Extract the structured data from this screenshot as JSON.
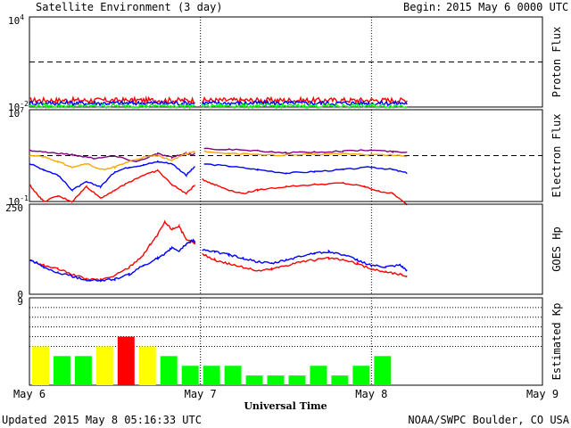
{
  "header": {
    "title": "Satellite Environment (3 day)",
    "begin_label": "Begin:",
    "begin_value": "2015 May 6 0000 UTC"
  },
  "footer": {
    "updated": "Updated 2015 May  8 05:16:33 UTC",
    "credit": "NOAA/SWPC Boulder, CO USA"
  },
  "colors": {
    "red": "#ff0000",
    "blue": "#0000ff",
    "green": "#00ff00",
    "orange": "#ffa500",
    "purple": "#800080",
    "kp_yellow": "#ffff00",
    "kp_red": "#ff0000",
    "kp_green": "#00ff00",
    "hp_label": "#ff0000"
  },
  "chart_data": [
    {
      "id": "proton",
      "type": "line",
      "ylabel": "Proton Flux",
      "yscale": "log",
      "ylim": [
        0.01,
        10000
      ],
      "tick_labels": [
        {
          "base": "10",
          "exp": "4",
          "value": 10000
        },
        {
          "base": "10",
          "exp": "-2",
          "value": 0.01
        }
      ],
      "threshold": 10,
      "series": [
        {
          "color": "red",
          "level": 0.028,
          "noise": 0.35
        },
        {
          "color": "blue",
          "level": 0.018,
          "noise": 0.3
        },
        {
          "color": "green",
          "level": 0.012,
          "noise": 0.25
        }
      ],
      "x_range": [
        0,
        53
      ],
      "gap": [
        23.3,
        24.2
      ]
    },
    {
      "id": "electron",
      "type": "line",
      "ylabel": "Electron Flux",
      "yscale": "log",
      "ylim": [
        0.1,
        10000000
      ],
      "tick_labels": [
        {
          "base": "10",
          "exp": "7",
          "value": 10000000
        },
        {
          "base": "10",
          "exp": "-1",
          "value": 0.1
        }
      ],
      "threshold": 1000,
      "series": [
        {
          "color": "purple",
          "points": [
            [
              0,
              3000
            ],
            [
              3,
              1800
            ],
            [
              6,
              1200
            ],
            [
              9,
              600
            ],
            [
              12,
              900
            ],
            [
              15,
              300
            ],
            [
              18,
              1500
            ],
            [
              20,
              700
            ],
            [
              22,
              1500
            ],
            [
              23,
              1200
            ],
            [
              24,
              4000
            ],
            [
              28,
              3500
            ],
            [
              32,
              2500
            ],
            [
              36,
              1800
            ],
            [
              40,
              2000
            ],
            [
              44,
              2500
            ],
            [
              48,
              3000
            ],
            [
              51,
              2200
            ],
            [
              53,
              2000
            ]
          ]
        },
        {
          "color": "orange",
          "points": [
            [
              0,
              1000
            ],
            [
              2,
              800
            ],
            [
              4,
              300
            ],
            [
              6,
              100
            ],
            [
              8,
              200
            ],
            [
              10,
              60
            ],
            [
              12,
              100
            ],
            [
              14,
              300
            ],
            [
              16,
              700
            ],
            [
              18,
              1000
            ],
            [
              20,
              400
            ],
            [
              22,
              1500
            ],
            [
              24,
              2500
            ],
            [
              28,
              1500
            ],
            [
              32,
              1200
            ],
            [
              36,
              1100
            ],
            [
              40,
              1300
            ],
            [
              44,
              1500
            ],
            [
              48,
              1200
            ],
            [
              51,
              1100
            ],
            [
              53,
              900
            ]
          ]
        },
        {
          "color": "blue",
          "points": [
            [
              0,
              200
            ],
            [
              2,
              60
            ],
            [
              4,
              20
            ],
            [
              6,
              1
            ],
            [
              8,
              5
            ],
            [
              10,
              2
            ],
            [
              12,
              40
            ],
            [
              14,
              100
            ],
            [
              16,
              150
            ],
            [
              18,
              300
            ],
            [
              20,
              200
            ],
            [
              22,
              20
            ],
            [
              23,
              80
            ],
            [
              24,
              200
            ],
            [
              28,
              120
            ],
            [
              32,
              60
            ],
            [
              36,
              30
            ],
            [
              40,
              40
            ],
            [
              44,
              60
            ],
            [
              48,
              100
            ],
            [
              51,
              60
            ],
            [
              53,
              30
            ]
          ]
        },
        {
          "color": "red",
          "points": [
            [
              0,
              3
            ],
            [
              1,
              0.5
            ],
            [
              2,
              0.1
            ],
            [
              4,
              0.3
            ],
            [
              6,
              0.1
            ],
            [
              8,
              2
            ],
            [
              10,
              0.2
            ],
            [
              12,
              1
            ],
            [
              14,
              5
            ],
            [
              16,
              20
            ],
            [
              18,
              50
            ],
            [
              20,
              3
            ],
            [
              22,
              0.5
            ],
            [
              23,
              2
            ],
            [
              24,
              10
            ],
            [
              26,
              3
            ],
            [
              28,
              1
            ],
            [
              30,
              0.5
            ],
            [
              32,
              1
            ],
            [
              36,
              2
            ],
            [
              40,
              3
            ],
            [
              44,
              4
            ],
            [
              47,
              2
            ],
            [
              49,
              0.8
            ],
            [
              51,
              0.5
            ],
            [
              53,
              0.05
            ]
          ]
        }
      ],
      "x_range": [
        0,
        53
      ],
      "gap": [
        23.3,
        24.2
      ]
    },
    {
      "id": "hp",
      "type": "line",
      "ylabel": "GOES Hp",
      "yscale": "linear",
      "ylim": [
        0,
        250
      ],
      "tick_labels": [
        {
          "text": "250",
          "value": 250,
          "color": "hp_label"
        },
        {
          "text": "0",
          "value": 0
        }
      ],
      "series": [
        {
          "color": "red",
          "points": [
            [
              0,
              95
            ],
            [
              2,
              80
            ],
            [
              4,
              70
            ],
            [
              6,
              55
            ],
            [
              8,
              42
            ],
            [
              10,
              40
            ],
            [
              12,
              52
            ],
            [
              14,
              75
            ],
            [
              16,
              110
            ],
            [
              17,
              140
            ],
            [
              18,
              165
            ],
            [
              19,
              200
            ],
            [
              20,
              180
            ],
            [
              21,
              190
            ],
            [
              22,
              150
            ],
            [
              23,
              145
            ],
            [
              24,
              115
            ],
            [
              26,
              95
            ],
            [
              28,
              85
            ],
            [
              30,
              75
            ],
            [
              32,
              65
            ],
            [
              34,
              70
            ],
            [
              36,
              80
            ],
            [
              38,
              90
            ],
            [
              40,
              95
            ],
            [
              42,
              100
            ],
            [
              44,
              95
            ],
            [
              46,
              85
            ],
            [
              48,
              70
            ],
            [
              50,
              62
            ],
            [
              52,
              55
            ],
            [
              53,
              50
            ]
          ]
        },
        {
          "color": "blue",
          "points": [
            [
              0,
              95
            ],
            [
              2,
              75
            ],
            [
              4,
              60
            ],
            [
              6,
              50
            ],
            [
              8,
              40
            ],
            [
              10,
              38
            ],
            [
              12,
              42
            ],
            [
              14,
              55
            ],
            [
              16,
              80
            ],
            [
              18,
              100
            ],
            [
              19,
              110
            ],
            [
              20,
              130
            ],
            [
              21,
              120
            ],
            [
              22,
              140
            ],
            [
              23,
              150
            ],
            [
              24,
              125
            ],
            [
              26,
              118
            ],
            [
              28,
              110
            ],
            [
              30,
              100
            ],
            [
              32,
              90
            ],
            [
              34,
              85
            ],
            [
              36,
              95
            ],
            [
              38,
              105
            ],
            [
              40,
              115
            ],
            [
              42,
              118
            ],
            [
              44,
              110
            ],
            [
              46,
              95
            ],
            [
              48,
              80
            ],
            [
              50,
              75
            ],
            [
              52,
              80
            ],
            [
              53,
              65
            ]
          ]
        }
      ],
      "x_range": [
        0,
        53
      ],
      "gap": [
        23.3,
        24.2
      ]
    },
    {
      "id": "kp",
      "type": "bar",
      "ylabel": "Estimated Kp",
      "ylim": [
        0,
        9
      ],
      "tick_labels": [
        {
          "text": "9",
          "value": 9
        }
      ],
      "gridlines": [
        4,
        5,
        6,
        7,
        8,
        9
      ],
      "bar_width_hours": 3,
      "values": [
        4,
        3,
        3,
        4,
        5,
        4,
        3,
        2,
        2,
        2,
        1,
        1,
        1,
        2,
        1,
        2,
        3
      ],
      "colors": [
        "kp_yellow",
        "kp_green",
        "kp_green",
        "kp_yellow",
        "kp_red",
        "kp_yellow",
        "kp_green",
        "kp_green",
        "kp_green",
        "kp_green",
        "kp_green",
        "kp_green",
        "kp_green",
        "kp_green",
        "kp_green",
        "kp_green",
        "kp_green"
      ]
    }
  ],
  "x_axis": {
    "label": "Universal Time",
    "range_hours": [
      0,
      72
    ],
    "ticks": [
      {
        "text": "May 6",
        "hour": 0
      },
      {
        "text": "May 7",
        "hour": 24
      },
      {
        "text": "May 8",
        "hour": 48
      },
      {
        "text": "May 9",
        "hour": 72
      }
    ],
    "day_dividers": [
      24,
      48
    ]
  }
}
